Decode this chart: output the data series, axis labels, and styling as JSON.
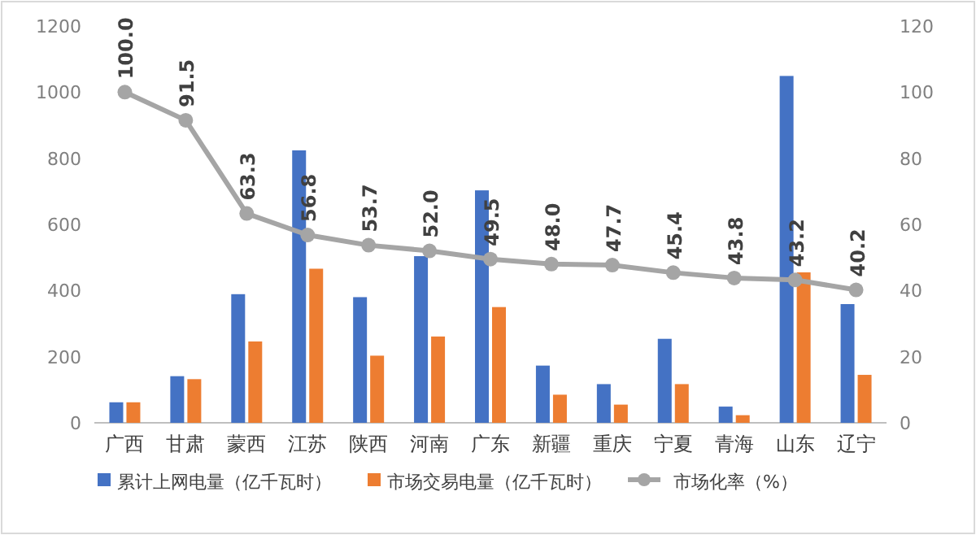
{
  "chart_data": {
    "type": "bar",
    "categories": [
      "广西",
      "甘肃",
      "蒙西",
      "江苏",
      "陕西",
      "河南",
      "广东",
      "新疆",
      "重庆",
      "宁夏",
      "青海",
      "山东",
      "辽宁"
    ],
    "series": [
      {
        "name": "累计上网电量（亿千瓦时）",
        "color": "#4472c4",
        "values": [
          62,
          141,
          389,
          824,
          380,
          504,
          703,
          173,
          117,
          254,
          49,
          1049,
          359
        ]
      },
      {
        "name": "市场交易电量（亿千瓦时）",
        "color": "#ed7d31",
        "values": [
          62,
          132,
          246,
          466,
          203,
          261,
          350,
          85,
          55,
          117,
          23,
          455,
          145
        ]
      },
      {
        "name": "市场化率（%）",
        "color": "#a5a5a5",
        "type": "line",
        "axis": "y2",
        "values": [
          100.0,
          91.5,
          63.3,
          56.8,
          53.7,
          52.0,
          49.5,
          48.0,
          47.7,
          45.4,
          43.8,
          43.2,
          40.2
        ],
        "value_labels": [
          "100.0",
          "91.5",
          "63.3",
          "56.8",
          "53.7",
          "52.0",
          "49.5",
          "48.0",
          "47.7",
          "45.4",
          "43.8",
          "43.2",
          "40.2"
        ]
      }
    ],
    "ylim": [
      0,
      1200
    ],
    "yticks": [
      0,
      200,
      400,
      600,
      800,
      1000,
      1200
    ],
    "y2lim": [
      0,
      120
    ],
    "y2ticks": [
      0,
      20,
      40,
      60,
      80,
      100,
      120
    ],
    "marker": "circle",
    "legend": "bottom",
    "grid": false
  }
}
